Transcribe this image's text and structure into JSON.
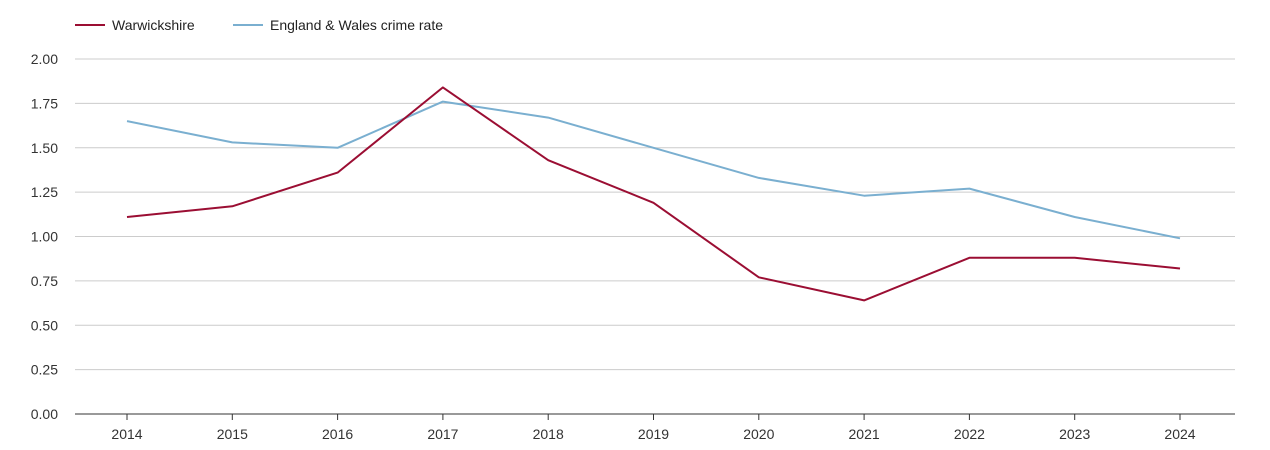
{
  "chart_data": {
    "type": "line",
    "title": "",
    "xlabel": "",
    "ylabel": "",
    "categories": [
      "2014",
      "2015",
      "2016",
      "2017",
      "2018",
      "2019",
      "2020",
      "2021",
      "2022",
      "2023",
      "2024"
    ],
    "series": [
      {
        "name": "Warwickshire",
        "color": "#9b0e33",
        "values": [
          1.11,
          1.17,
          1.36,
          1.84,
          1.43,
          1.19,
          0.77,
          0.64,
          0.88,
          0.88,
          0.82
        ]
      },
      {
        "name": "England & Wales crime rate",
        "color": "#7aafd0",
        "values": [
          1.65,
          1.53,
          1.5,
          1.76,
          1.67,
          1.5,
          1.33,
          1.23,
          1.27,
          1.11,
          0.99
        ]
      }
    ],
    "ylim": [
      0,
      2
    ],
    "yticks": [
      "0.00",
      "0.25",
      "0.50",
      "0.75",
      "1.00",
      "1.25",
      "1.50",
      "1.75",
      "2.00"
    ],
    "grid": true,
    "legend_position": "top-left"
  }
}
